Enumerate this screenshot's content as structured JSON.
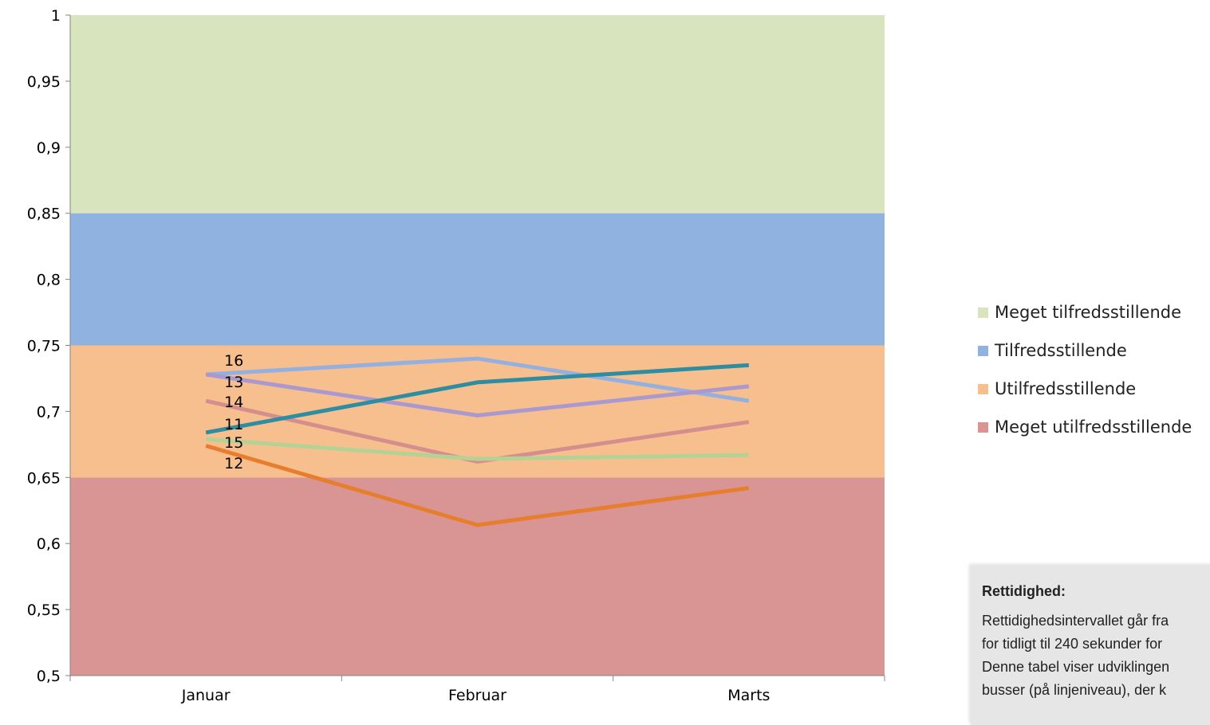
{
  "chart_data": {
    "type": "line",
    "categories": [
      "Januar",
      "Februar",
      "Marts"
    ],
    "ylim": [
      0.5,
      1
    ],
    "yticks": [
      "0,5",
      "0,55",
      "0,6",
      "0,65",
      "0,7",
      "0,75",
      "0,8",
      "0,85",
      "0,9",
      "0,95",
      "1"
    ],
    "ytick_values": [
      0.5,
      0.55,
      0.6,
      0.65,
      0.7,
      0.75,
      0.8,
      0.85,
      0.9,
      0.95,
      1.0
    ],
    "bands": [
      {
        "name": "Meget tilfredsstillende",
        "from": 0.85,
        "to": 1.0,
        "color": "#d8e4bd"
      },
      {
        "name": "Tilfredsstillende",
        "from": 0.75,
        "to": 0.85,
        "color": "#8fb2e0"
      },
      {
        "name": "Utilfredsstillende",
        "from": 0.65,
        "to": 0.75,
        "color": "#f8bf8e"
      },
      {
        "name": "Meget utilfredsstillende",
        "from": 0.5,
        "to": 0.65,
        "color": "#d99593"
      }
    ],
    "series": [
      {
        "name": "16",
        "color": "#93b0e0",
        "values": [
          0.728,
          0.74,
          0.708
        ]
      },
      {
        "name": "13",
        "color": "#a999cf",
        "values": [
          0.728,
          0.697,
          0.719
        ]
      },
      {
        "name": "14",
        "color": "#d48e8d",
        "values": [
          0.708,
          0.662,
          0.692
        ]
      },
      {
        "name": "11",
        "color": "#2f8da2",
        "values": [
          0.684,
          0.722,
          0.735
        ]
      },
      {
        "name": "15",
        "color": "#b4d296",
        "values": [
          0.679,
          0.664,
          0.667
        ]
      },
      {
        "name": "12",
        "color": "#e67e2e",
        "values": [
          0.674,
          0.614,
          0.642
        ]
      }
    ],
    "legend_position": "right",
    "grid": false
  },
  "legend": [
    {
      "label": "Meget tilfredsstillende",
      "color": "#d8e4bd"
    },
    {
      "label": "Tilfredsstillende",
      "color": "#8fb2e0"
    },
    {
      "label": "Utilfredsstillende",
      "color": "#f8bf8e"
    },
    {
      "label": "Meget utilfredsstillende",
      "color": "#d99593"
    }
  ],
  "note": {
    "title": "Rettidighed:",
    "lines": [
      "Rettidighedsintervallet går fra",
      "for tidligt til 240 sekunder for",
      "Denne tabel viser udviklingen",
      "busser (på linjeniveau), der k"
    ]
  }
}
